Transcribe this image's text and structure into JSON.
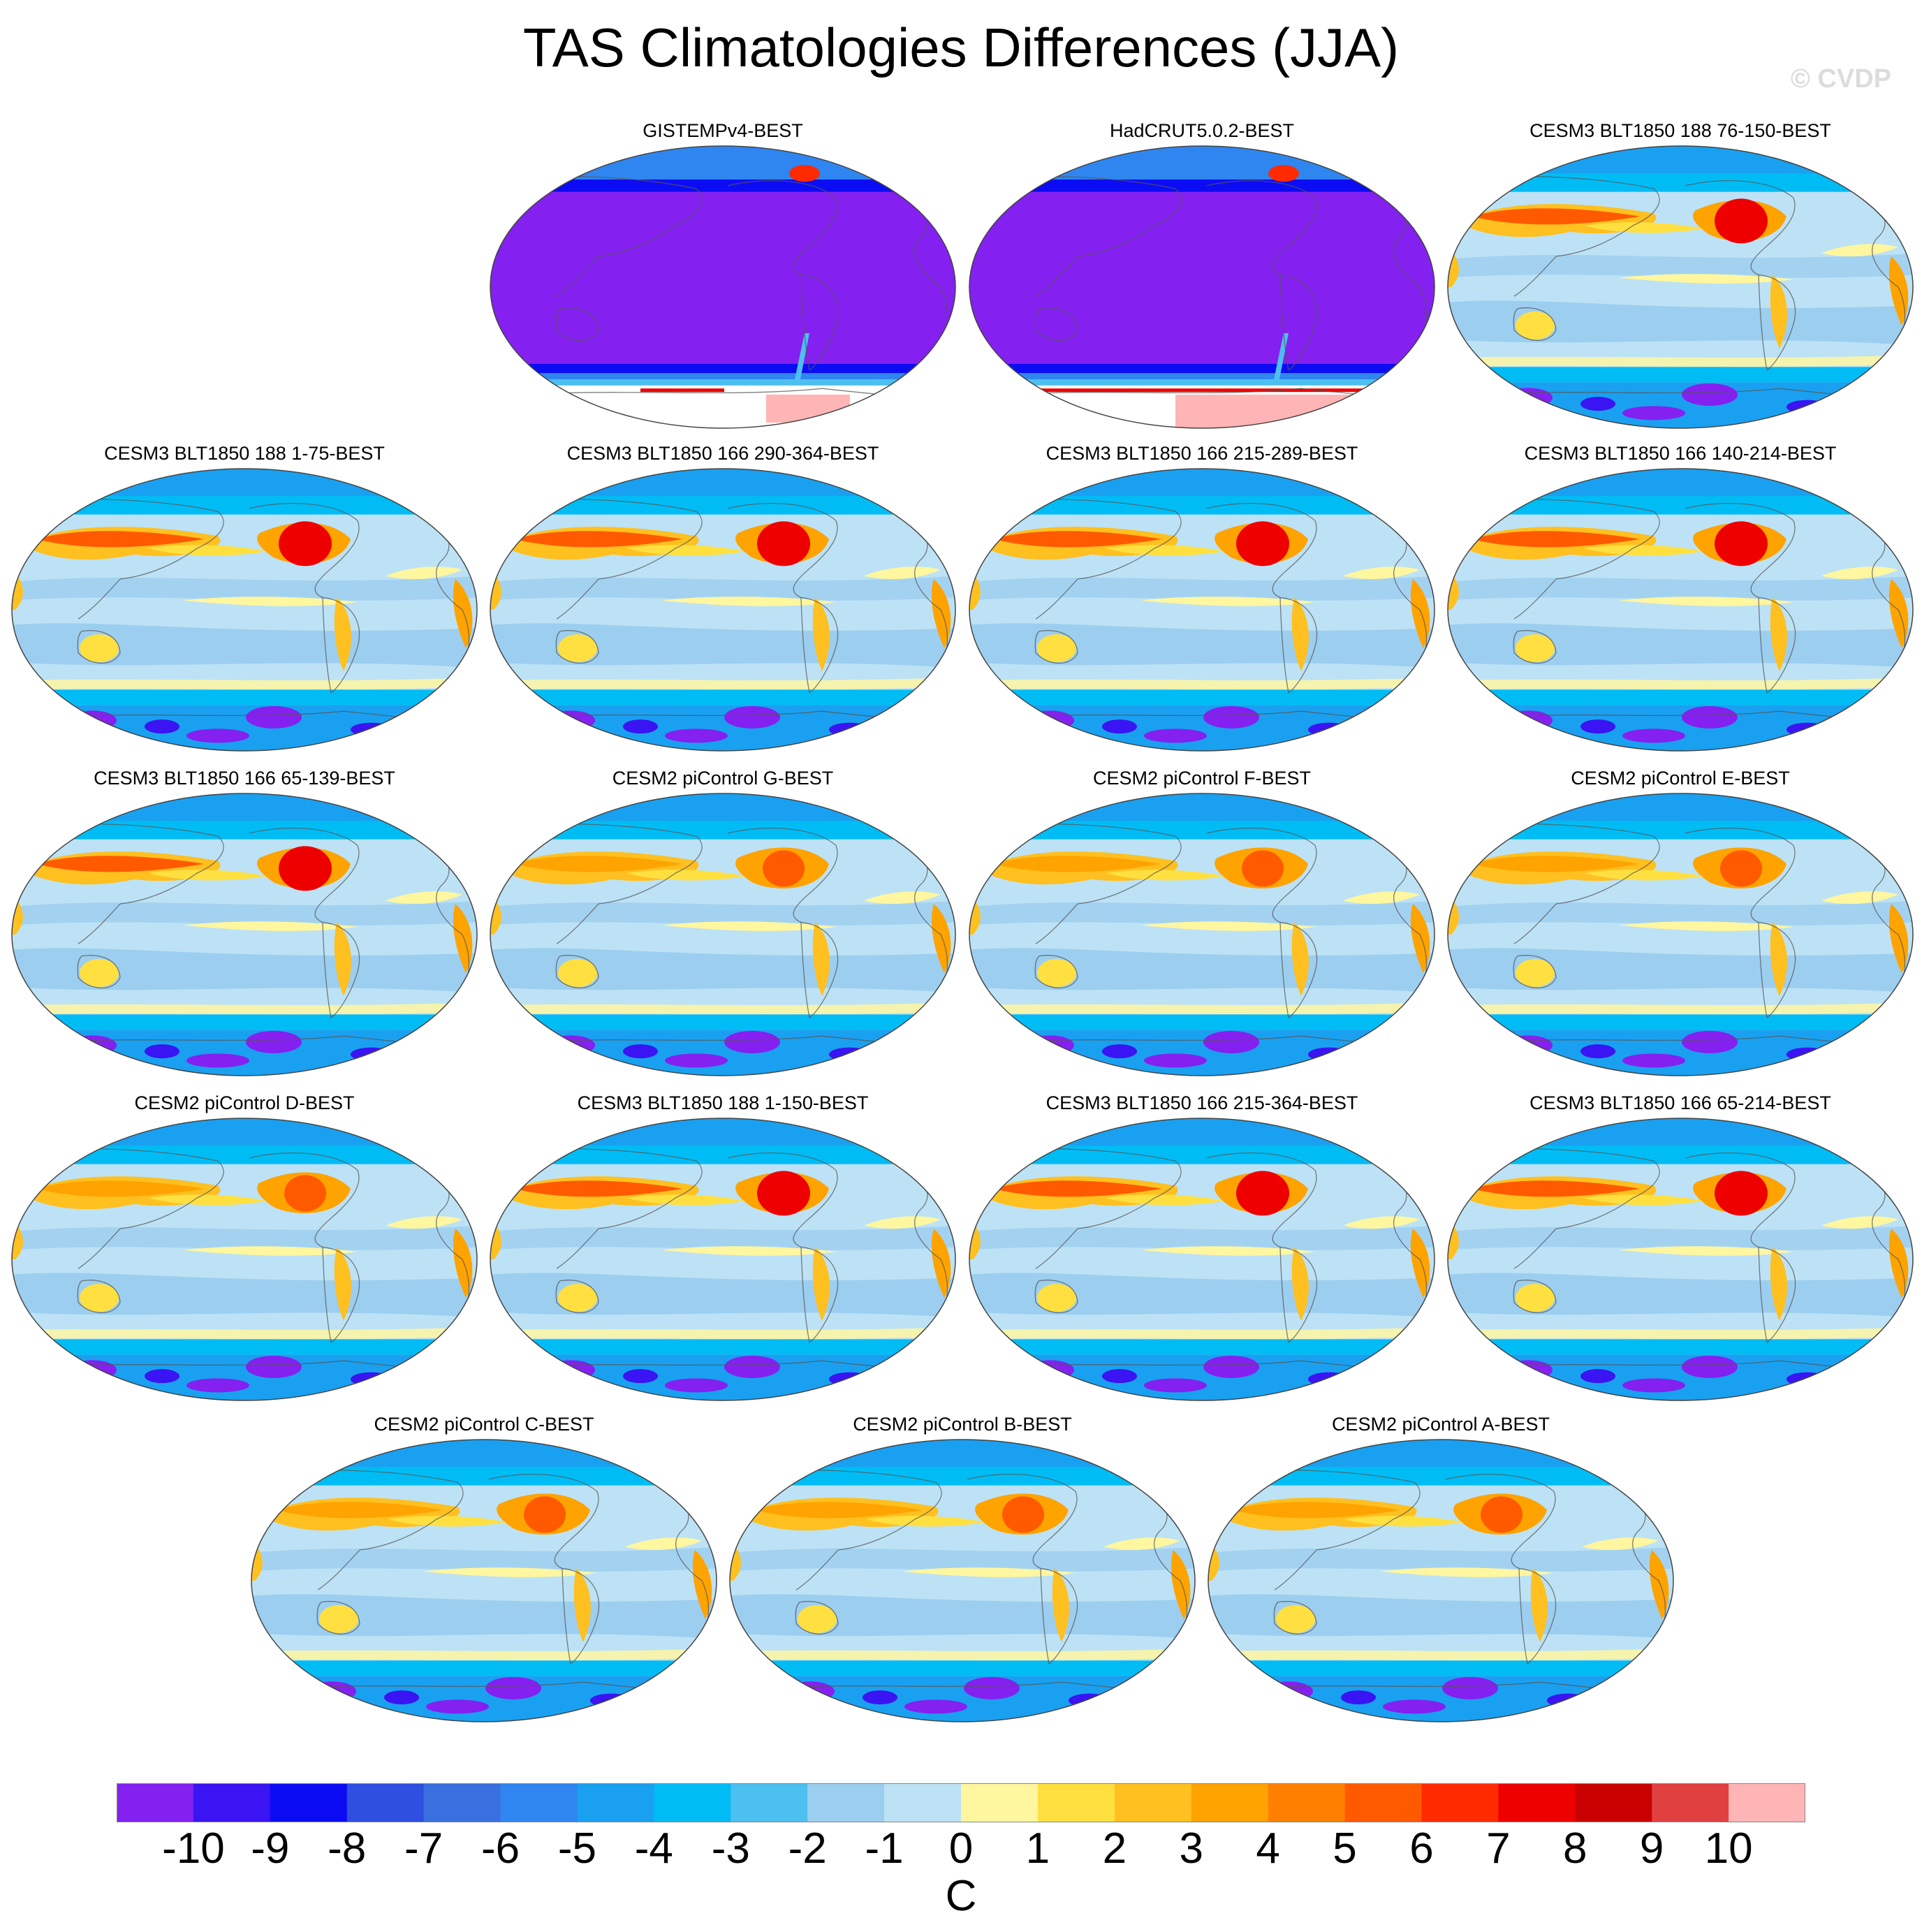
{
  "title": "TAS Climatologies Differences (JJA)",
  "watermark": "© CVDP",
  "chart_data": {
    "type": "heatmap",
    "projection": "Robinson (Pacific-centered)",
    "panels": [
      {
        "label": "GISTEMPv4-BEST",
        "kind": "obs"
      },
      {
        "label": "HadCRUT5.0.2-BEST",
        "kind": "obs"
      },
      {
        "label": "CESM3 BLT1850 188 76-150-BEST",
        "kind": "cesm3"
      },
      {
        "label": "CESM3 BLT1850 188 1-75-BEST",
        "kind": "cesm3"
      },
      {
        "label": "CESM3 BLT1850 166 290-364-BEST",
        "kind": "cesm3"
      },
      {
        "label": "CESM3 BLT1850 166 215-289-BEST",
        "kind": "cesm3"
      },
      {
        "label": "CESM3 BLT1850 166 140-214-BEST",
        "kind": "cesm3"
      },
      {
        "label": "CESM3 BLT1850 166 65-139-BEST",
        "kind": "cesm3"
      },
      {
        "label": "CESM2 piControl G-BEST",
        "kind": "cesm2"
      },
      {
        "label": "CESM2 piControl F-BEST",
        "kind": "cesm2"
      },
      {
        "label": "CESM2 piControl E-BEST",
        "kind": "cesm2"
      },
      {
        "label": "CESM2 piControl D-BEST",
        "kind": "cesm2"
      },
      {
        "label": "CESM3 BLT1850 188 1-150-BEST",
        "kind": "cesm3"
      },
      {
        "label": "CESM3 BLT1850 166 215-364-BEST",
        "kind": "cesm3"
      },
      {
        "label": "CESM3 BLT1850 166 65-214-BEST",
        "kind": "cesm3"
      },
      {
        "label": "CESM2 piControl C-BEST",
        "kind": "cesm2"
      },
      {
        "label": "CESM2 piControl B-BEST",
        "kind": "cesm2"
      },
      {
        "label": "CESM2 piControl A-BEST",
        "kind": "cesm2"
      }
    ],
    "colorbar": {
      "levels": [
        -10,
        -9,
        -8,
        -7,
        -6,
        -5,
        -4,
        -3,
        -2,
        -1,
        0,
        1,
        2,
        3,
        4,
        5,
        6,
        7,
        8,
        9,
        10
      ],
      "tick_labels": [
        "-10",
        "-9",
        "-8",
        "-7",
        "-6",
        "-5",
        "-4",
        "-3",
        "-2",
        "-1",
        "0",
        "1",
        "2",
        "3",
        "4",
        "5",
        "6",
        "7",
        "8",
        "9",
        "10"
      ],
      "colors": [
        "#8420f0",
        "#3a14f2",
        "#0c0cf4",
        "#2f4fe0",
        "#3a6fe0",
        "#2f86f0",
        "#1aa0f0",
        "#00bcf5",
        "#4cc0f0",
        "#9ccef0",
        "#bde2f5",
        "#fff6a0",
        "#ffe040",
        "#ffc020",
        "#ffa300",
        "#ff8000",
        "#ff5a00",
        "#ff2a00",
        "#ee0000",
        "#c80000",
        "#e04040",
        "#ffb5b5"
      ],
      "unit": "C"
    }
  }
}
